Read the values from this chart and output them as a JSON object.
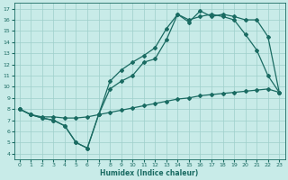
{
  "title": "",
  "xlabel": "Humidex (Indice chaleur)",
  "bg_color": "#c8ebe8",
  "grid_color": "#9ecfcb",
  "line_color": "#1a6b62",
  "xlim": [
    -0.5,
    23.5
  ],
  "ylim": [
    3.5,
    17.5
  ],
  "xticks": [
    0,
    1,
    2,
    3,
    4,
    5,
    6,
    7,
    8,
    9,
    10,
    11,
    12,
    13,
    14,
    15,
    16,
    17,
    18,
    19,
    20,
    21,
    22,
    23
  ],
  "yticks": [
    4,
    5,
    6,
    7,
    8,
    9,
    10,
    11,
    12,
    13,
    14,
    15,
    16,
    17
  ],
  "line1_x": [
    0,
    1,
    2,
    3,
    4,
    5,
    6,
    7,
    8,
    9,
    10,
    11,
    12,
    13,
    14,
    15,
    16,
    17,
    18,
    19,
    20,
    21,
    22,
    23
  ],
  "line1_y": [
    8.0,
    7.5,
    7.2,
    7.0,
    6.5,
    5.0,
    4.5,
    7.5,
    9.8,
    10.5,
    11.0,
    12.2,
    12.5,
    14.2,
    16.5,
    16.0,
    16.3,
    16.5,
    16.3,
    16.0,
    14.7,
    13.3,
    11.0,
    9.5
  ],
  "line2_x": [
    0,
    1,
    2,
    3,
    4,
    5,
    6,
    7,
    8,
    9,
    10,
    11,
    12,
    13,
    14,
    15,
    16,
    17,
    18,
    19,
    20,
    21,
    22,
    23
  ],
  "line2_y": [
    8.0,
    7.5,
    7.2,
    7.0,
    6.5,
    5.0,
    4.5,
    7.5,
    10.5,
    11.5,
    12.2,
    12.8,
    13.5,
    15.2,
    16.5,
    15.8,
    16.8,
    16.3,
    16.5,
    16.3,
    16.0,
    16.0,
    14.5,
    9.5
  ],
  "line3_x": [
    0,
    1,
    2,
    3,
    4,
    5,
    6,
    7,
    8,
    9,
    10,
    11,
    12,
    13,
    14,
    15,
    16,
    17,
    18,
    19,
    20,
    21,
    22,
    23
  ],
  "line3_y": [
    8.0,
    7.5,
    7.3,
    7.3,
    7.2,
    7.2,
    7.3,
    7.5,
    7.7,
    7.9,
    8.1,
    8.3,
    8.5,
    8.7,
    8.9,
    9.0,
    9.2,
    9.3,
    9.4,
    9.5,
    9.6,
    9.7,
    9.8,
    9.5
  ],
  "marker": "D",
  "markersize": 2.0,
  "linewidth": 0.9
}
